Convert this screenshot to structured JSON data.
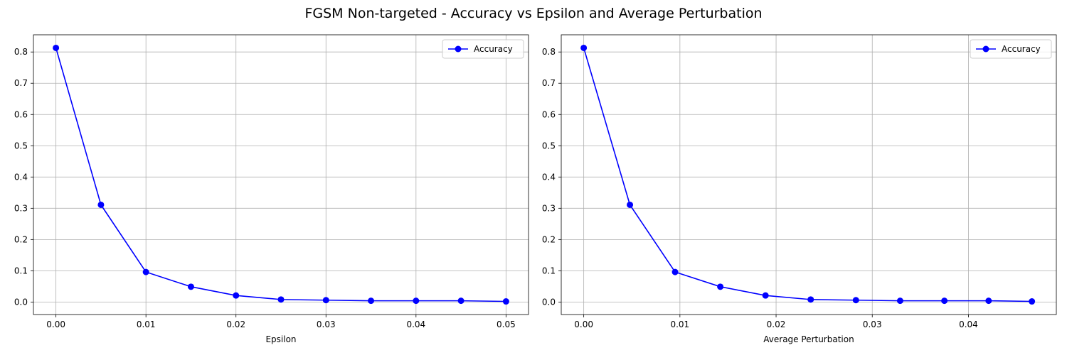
{
  "figure": {
    "title": "FGSM Non-targeted - Accuracy vs Epsilon and Average Perturbation"
  },
  "chart_data": [
    {
      "type": "line",
      "title": "",
      "xlabel": "Epsilon",
      "ylabel": "",
      "xlim": [
        -0.0025,
        0.0525
      ],
      "ylim": [
        -0.04,
        0.855
      ],
      "xticks": [
        0.0,
        0.01,
        0.02,
        0.03,
        0.04,
        0.05
      ],
      "xtick_labels": [
        "0.00",
        "0.01",
        "0.02",
        "0.03",
        "0.04",
        "0.05"
      ],
      "yticks": [
        0.0,
        0.1,
        0.2,
        0.3,
        0.4,
        0.5,
        0.6,
        0.7,
        0.8
      ],
      "ytick_labels": [
        "0.0",
        "0.1",
        "0.2",
        "0.3",
        "0.4",
        "0.5",
        "0.6",
        "0.7",
        "0.8"
      ],
      "grid": true,
      "legend": "top-right",
      "series": [
        {
          "name": "Accuracy",
          "color": "#0000ff",
          "marker": "circle",
          "x": [
            0.0,
            0.005,
            0.01,
            0.015,
            0.02,
            0.025,
            0.03,
            0.035,
            0.04,
            0.045,
            0.05
          ],
          "y": [
            0.813,
            0.311,
            0.096,
            0.049,
            0.021,
            0.008,
            0.006,
            0.004,
            0.004,
            0.004,
            0.002
          ]
        }
      ]
    },
    {
      "type": "line",
      "title": "",
      "xlabel": "Average Perturbation",
      "ylabel": "",
      "xlim": [
        -0.00234,
        0.04914
      ],
      "ylim": [
        -0.04,
        0.855
      ],
      "xticks": [
        0.0,
        0.01,
        0.02,
        0.03,
        0.04
      ],
      "xtick_labels": [
        "0.00",
        "0.01",
        "0.02",
        "0.03",
        "0.04"
      ],
      "yticks": [
        0.0,
        0.1,
        0.2,
        0.3,
        0.4,
        0.5,
        0.6,
        0.7,
        0.8
      ],
      "ytick_labels": [
        "0.0",
        "0.1",
        "0.2",
        "0.3",
        "0.4",
        "0.5",
        "0.6",
        "0.7",
        "0.8"
      ],
      "grid": true,
      "legend": "top-right",
      "series": [
        {
          "name": "Accuracy",
          "color": "#0000ff",
          "marker": "circle",
          "x": [
            0.0,
            0.0048,
            0.0095,
            0.0142,
            0.0189,
            0.0236,
            0.0283,
            0.0329,
            0.0375,
            0.0421,
            0.0466
          ],
          "y": [
            0.813,
            0.311,
            0.096,
            0.049,
            0.021,
            0.008,
            0.006,
            0.004,
            0.004,
            0.004,
            0.002
          ]
        }
      ]
    }
  ]
}
